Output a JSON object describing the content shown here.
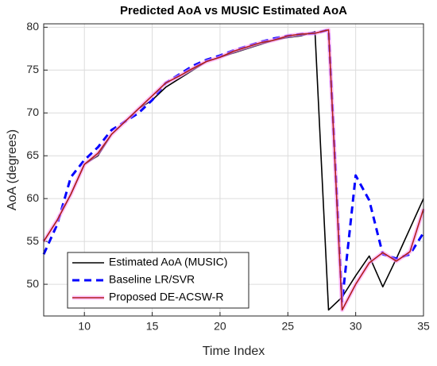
{
  "chart_data": {
    "type": "line",
    "title": "Predicted AoA vs MUSIC Estimated AoA",
    "xlabel": "Time Index",
    "ylabel": "AoA (degrees)",
    "x": [
      7,
      8,
      9,
      10,
      11,
      12,
      13,
      14,
      15,
      16,
      17,
      18,
      19,
      20,
      21,
      22,
      23,
      24,
      25,
      26,
      27,
      28,
      29,
      30,
      31,
      32,
      33,
      34,
      35
    ],
    "series": [
      {
        "name": "Estimated AoA (MUSIC)",
        "color": "#000000",
        "style": "solid",
        "values": [
          55,
          57.5,
          60.5,
          64,
          65,
          67.5,
          69,
          70.5,
          71.5,
          73,
          74,
          75,
          76,
          76.5,
          77,
          77.5,
          78,
          78.5,
          78.8,
          79,
          79.5,
          47,
          48.5,
          51,
          53.3,
          49.7,
          53,
          56.5,
          60
        ]
      },
      {
        "name": "Baseline LR/SVR",
        "color": "#0000ff",
        "style": "dashed",
        "values": [
          53.5,
          57,
          62.5,
          64.5,
          66,
          68,
          69,
          70,
          71.5,
          73.5,
          74.5,
          75.5,
          76.2,
          76.7,
          77.3,
          77.8,
          78.3,
          78.7,
          79,
          79.2,
          79.3,
          79.7,
          48,
          62.7,
          59.8,
          53.5,
          53,
          53.5,
          56
        ]
      },
      {
        "name": "Proposed DE-ACSW-R",
        "color": "#b0201a",
        "style": "solid",
        "glow": "#ff99ff",
        "values": [
          55,
          57.5,
          60.5,
          64,
          65.3,
          67.5,
          69,
          70.5,
          72,
          73.5,
          74.3,
          75.2,
          76,
          76.5,
          77.2,
          77.7,
          78.2,
          78.5,
          79,
          79.2,
          79.3,
          79.7,
          47,
          50,
          52.5,
          53.7,
          52.7,
          53.8,
          58.8
        ]
      }
    ],
    "xlim": [
      7,
      35
    ],
    "xticks": [
      10,
      15,
      20,
      25,
      30,
      35
    ],
    "ylim": [
      46.3,
      80.4
    ],
    "yticks": [
      50,
      55,
      60,
      65,
      70,
      75,
      80
    ],
    "grid": true,
    "legend": "lower left"
  }
}
